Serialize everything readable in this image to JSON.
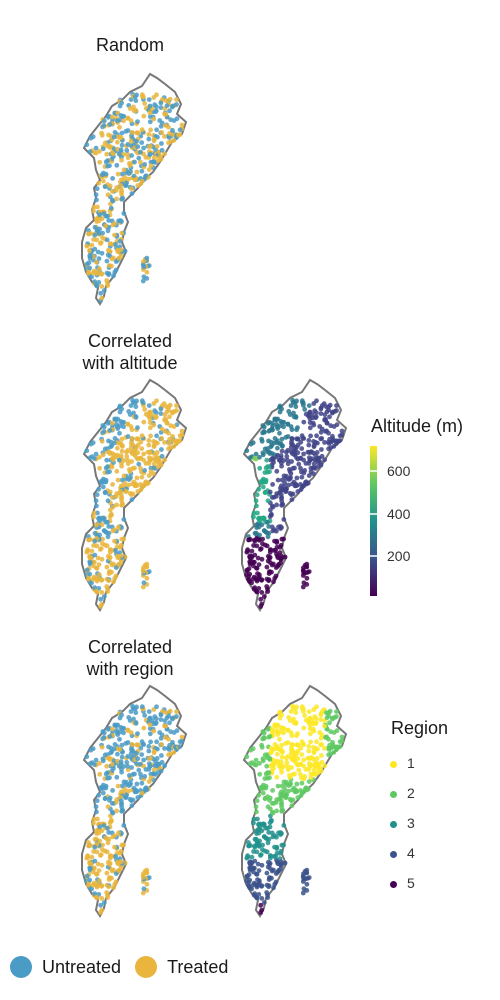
{
  "panels": {
    "random_title": "Random",
    "altitude_title": "Correlated\nwith altitude",
    "region_title": "Correlated\nwith region"
  },
  "altitude_legend": {
    "title": "Altitude (m)",
    "ticks": [
      "600",
      "400",
      "200"
    ],
    "scale_colors": [
      "#fde725",
      "#7ad151",
      "#22a884",
      "#2a788e",
      "#414487",
      "#440154"
    ]
  },
  "region_legend": {
    "title": "Region",
    "items": [
      {
        "label": "1",
        "color": "#fde725"
      },
      {
        "label": "2",
        "color": "#5ec962"
      },
      {
        "label": "3",
        "color": "#21918c"
      },
      {
        "label": "4",
        "color": "#3b528b"
      },
      {
        "label": "5",
        "color": "#440154"
      }
    ]
  },
  "treatment_legend": {
    "untreated_label": "Untreated",
    "untreated_color": "#4a9bc6",
    "treated_label": "Treated",
    "treated_color": "#e9b53c"
  },
  "outline_color": "#777777"
}
